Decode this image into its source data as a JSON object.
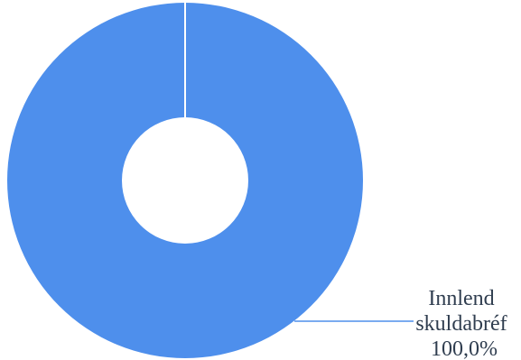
{
  "chart_data": {
    "type": "pie",
    "donut": true,
    "slices": [
      {
        "label_lines": [
          "Innlend",
          "skuldabréf",
          "100,0%"
        ],
        "value": 100.0,
        "color": "#4e8fec"
      }
    ],
    "separator_color": "#ffffff",
    "leader_line_color": "#4e8fec",
    "label_color": "#2f3d4f"
  }
}
